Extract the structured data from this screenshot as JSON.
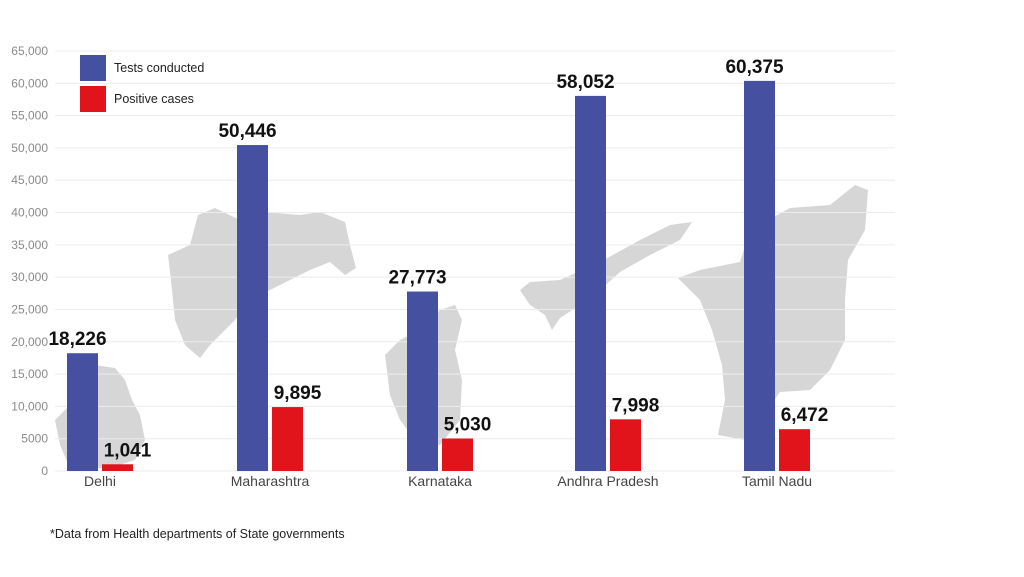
{
  "chart_data": {
    "type": "bar",
    "categories": [
      "Delhi",
      "Maharashtra",
      "Karnataka",
      "Andhra Pradesh",
      "Tamil Nadu"
    ],
    "series": [
      {
        "name": "Tests conducted",
        "values": [
          18226,
          50446,
          27773,
          58052,
          60375
        ],
        "labels": [
          "18,226",
          "50,446",
          "27,773",
          "58,052",
          "60,375"
        ],
        "color": "#4650a0"
      },
      {
        "name": "Positive cases",
        "values": [
          1041,
          9895,
          5030,
          7998,
          6472
        ],
        "labels": [
          "1,041",
          "9,895",
          "5,030",
          "7,998",
          "6,472"
        ],
        "color": "#e0141a"
      }
    ],
    "yticks": [
      0,
      5000,
      10000,
      15000,
      20000,
      25000,
      30000,
      35000,
      40000,
      45000,
      50000,
      55000,
      60000,
      65000
    ],
    "ytick_labels": [
      "0",
      "5000",
      "10,000",
      "15,000",
      "20,000",
      "25,000",
      "30,000",
      "35,000",
      "40,000",
      "45,000",
      "50,000",
      "55,000",
      "60,000",
      "65,000"
    ],
    "ylim": [
      0,
      65000
    ],
    "grid": true,
    "legend_position": "top-left",
    "background_decoration": "grey state map silhouettes behind each group"
  },
  "footnote": "*Data from Health departments of State governments"
}
